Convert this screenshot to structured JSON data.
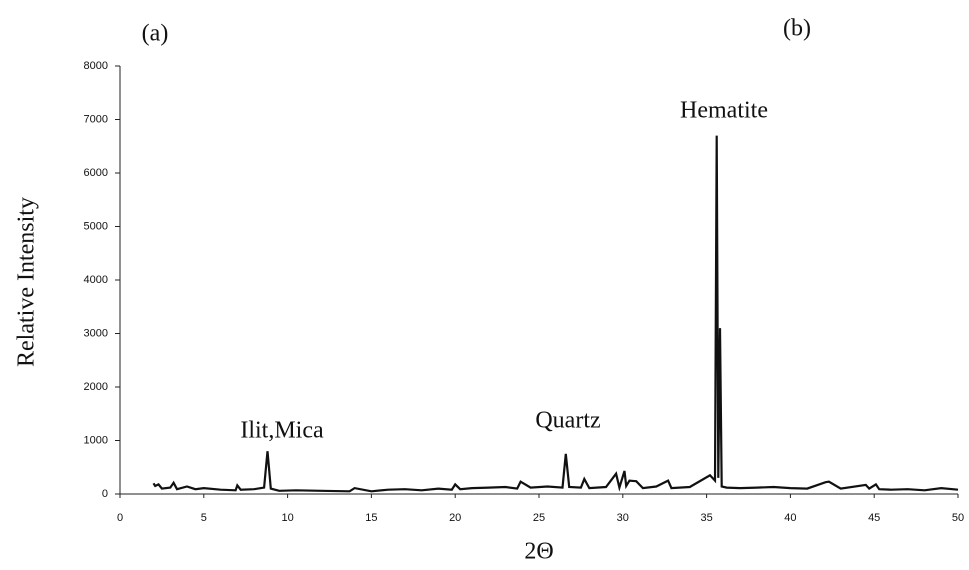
{
  "chart_data": {
    "type": "line",
    "panel_labels": [
      "(a)",
      "(b)"
    ],
    "y_label": "Relative Intensity",
    "x_label": "2Θ",
    "annotations": [
      "Ilit,Mica",
      "Quartz",
      "Hematite"
    ],
    "color": "#111111",
    "x": [
      2.0,
      2.1,
      2.3,
      2.5,
      3.0,
      3.2,
      3.4,
      4.0,
      4.5,
      5.0,
      6.0,
      6.9,
      7.0,
      7.2,
      8.0,
      8.6,
      8.8,
      9.0,
      9.5,
      10.5,
      12.0,
      13.7,
      14.0,
      15.0,
      16.0,
      17.0,
      18.0,
      19.0,
      19.8,
      20.0,
      20.3,
      21.0,
      22.0,
      23.0,
      23.7,
      23.9,
      24.5,
      25.5,
      26.4,
      26.6,
      26.8,
      27.5,
      27.7,
      28.0,
      29.0,
      29.6,
      29.8,
      30.1,
      30.2,
      30.4,
      30.8,
      31.2,
      32.0,
      32.7,
      32.9,
      34.0,
      35.2,
      35.5,
      35.6,
      35.7,
      35.8,
      35.9,
      36.2,
      37.0,
      38.0,
      39.0,
      40.0,
      41.0,
      42.1,
      42.3,
      43.0,
      44.5,
      44.7,
      45.1,
      45.3,
      46.0,
      47.0,
      48.0,
      49.0,
      50.0
    ],
    "values": [
      200,
      150,
      180,
      100,
      120,
      210,
      90,
      140,
      90,
      110,
      80,
      70,
      160,
      80,
      90,
      120,
      800,
      100,
      60,
      70,
      60,
      50,
      110,
      50,
      80,
      90,
      70,
      100,
      80,
      180,
      90,
      110,
      120,
      130,
      100,
      230,
      120,
      140,
      120,
      750,
      130,
      120,
      280,
      110,
      130,
      380,
      120,
      430,
      150,
      250,
      240,
      110,
      140,
      250,
      110,
      130,
      350,
      250,
      6700,
      300,
      3100,
      140,
      120,
      110,
      120,
      130,
      110,
      100,
      220,
      230,
      100,
      170,
      100,
      180,
      90,
      80,
      90,
      70,
      110,
      80
    ],
    "xlim": [
      0,
      50
    ],
    "xticks": [
      0,
      5,
      10,
      15,
      20,
      25,
      30,
      35,
      40,
      45,
      50
    ],
    "ylim": [
      0,
      8000
    ],
    "yticks": [
      0,
      1000,
      2000,
      3000,
      4000,
      5000,
      6000,
      7000,
      8000
    ]
  }
}
